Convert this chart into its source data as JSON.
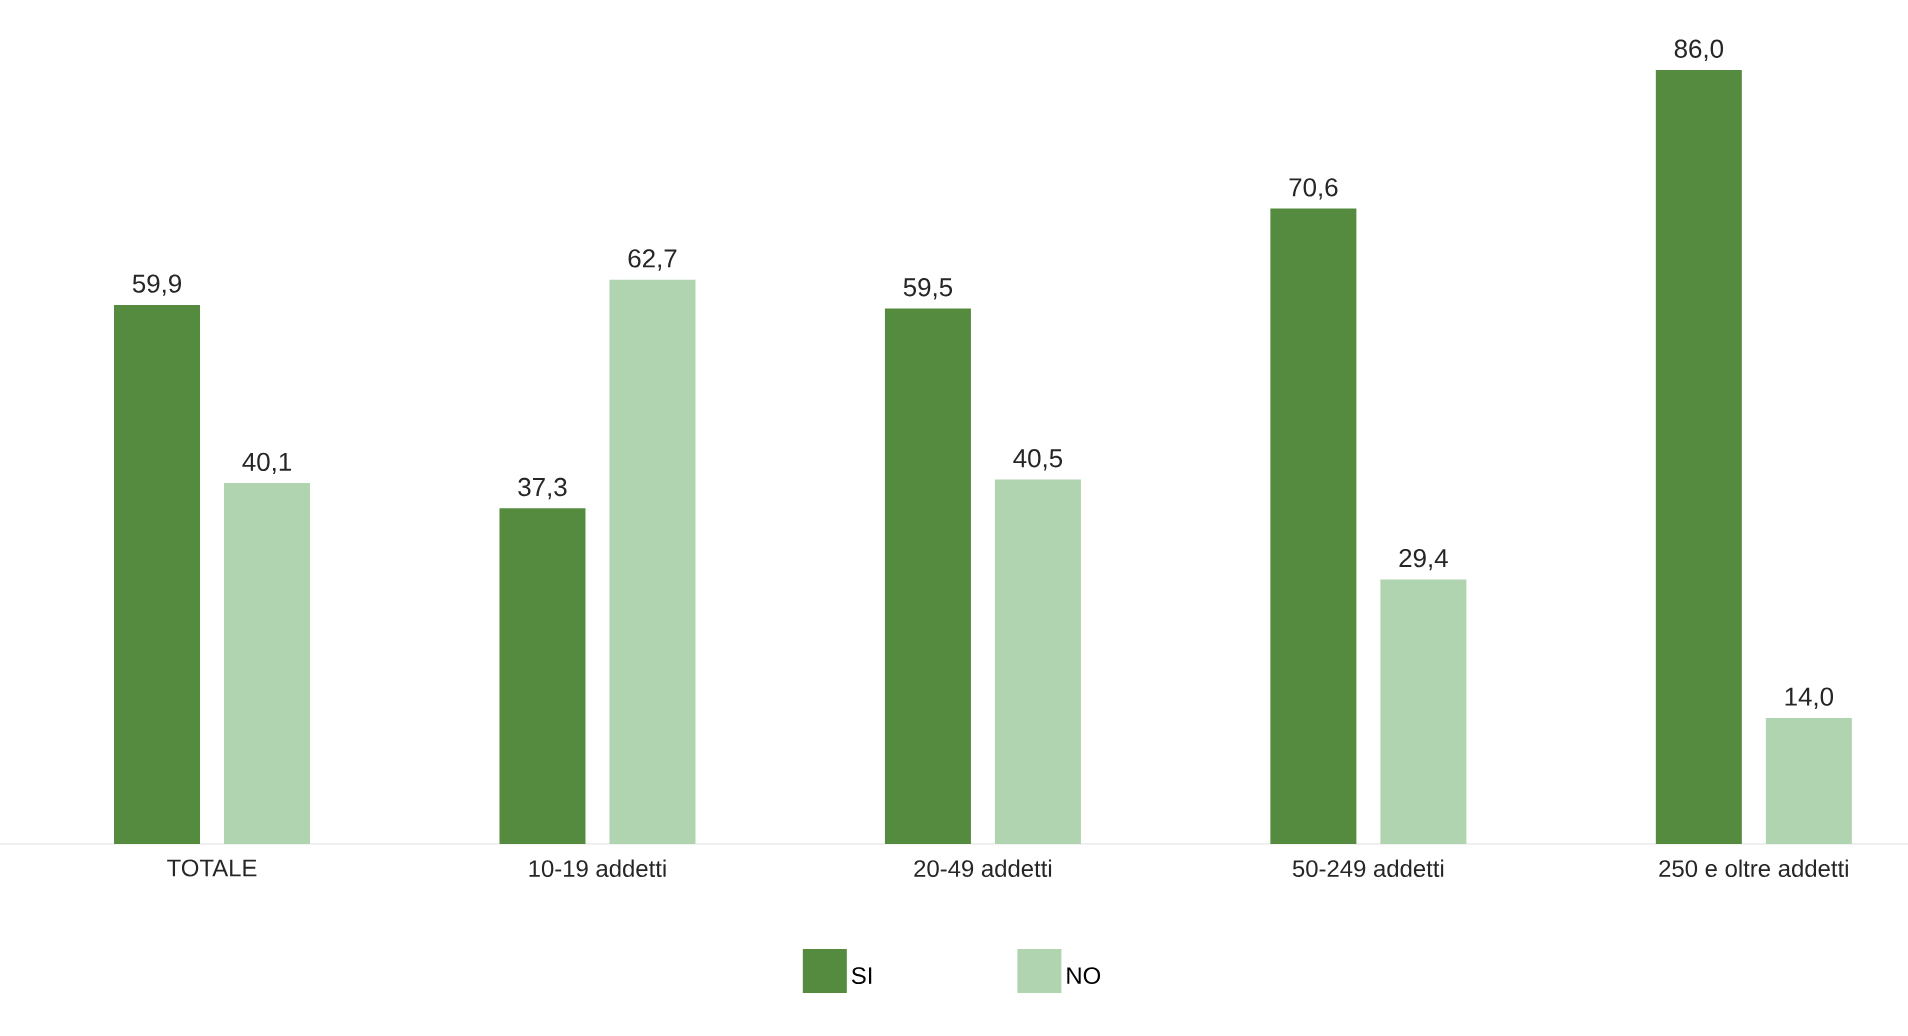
{
  "chart_data": {
    "type": "bar",
    "categories": [
      "TOTALE",
      "10-19 addetti",
      "20-49 addetti",
      "50-249 addetti",
      "250 e oltre addetti"
    ],
    "series": [
      {
        "name": "SI",
        "color": "#548b3f",
        "values": [
          59.9,
          37.3,
          59.5,
          70.6,
          86.0
        ],
        "value_labels": [
          "59,9",
          "37,3",
          "59,5",
          "70,6",
          "86,0"
        ]
      },
      {
        "name": "NO",
        "color": "#b0d3b0",
        "values": [
          40.1,
          62.7,
          40.5,
          29.4,
          14.0
        ],
        "value_labels": [
          "40,1",
          "62,7",
          "40,5",
          "29,4",
          "14,0"
        ]
      }
    ],
    "legend": "bottom"
  }
}
